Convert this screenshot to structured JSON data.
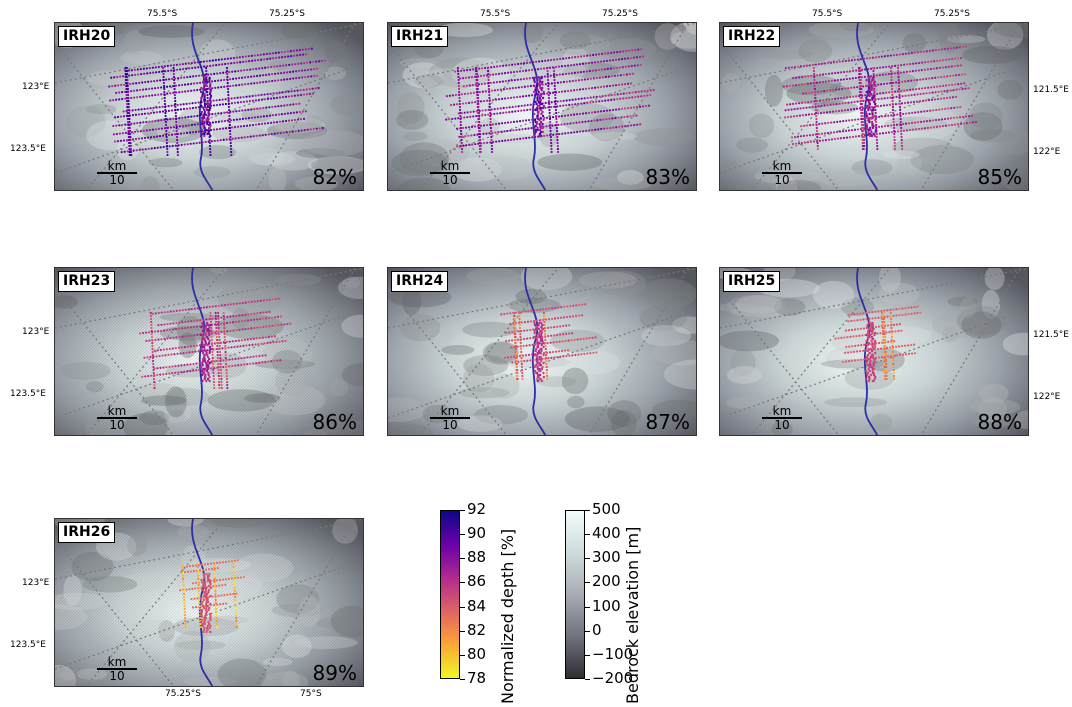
{
  "panels": [
    {
      "id": "IRH20",
      "pct": "82%",
      "coverage": 0.82,
      "depth_level": 0.05
    },
    {
      "id": "IRH21",
      "pct": "83%",
      "coverage": 0.78,
      "depth_level": 0.18
    },
    {
      "id": "IRH22",
      "pct": "85%",
      "coverage": 0.72,
      "depth_level": 0.32
    },
    {
      "id": "IRH23",
      "pct": "86%",
      "coverage": 0.55,
      "depth_level": 0.45
    },
    {
      "id": "IRH24",
      "pct": "87%",
      "coverage": 0.35,
      "depth_level": 0.62
    },
    {
      "id": "IRH25",
      "pct": "88%",
      "coverage": 0.32,
      "depth_level": 0.72
    },
    {
      "id": "IRH26",
      "pct": "89%",
      "coverage": 0.22,
      "depth_level": 0.85
    }
  ],
  "scale_bar": {
    "unit": "km",
    "length": "10"
  },
  "axis_labels": {
    "top_left": "75.5°S",
    "top_right": "75.25°S",
    "left_upper": "123°E",
    "left_lower": "123.5°E",
    "right_upper": "121.5°E",
    "right_lower": "122°E",
    "bottom_left": "75.25°S",
    "bottom_right": "75°S"
  },
  "colorbar_depth": {
    "label": "Normalized depth [%]",
    "ticks": [
      "92",
      "90",
      "88",
      "86",
      "84",
      "82",
      "80",
      "78"
    ],
    "min": 78,
    "max": 92,
    "colors": [
      "#0d0887",
      "#6a00a8",
      "#b12a90",
      "#e16462",
      "#fca636",
      "#f0f921"
    ]
  },
  "colorbar_bedrock": {
    "label": "Bedrock elevation [m]",
    "ticks": [
      "500",
      "400",
      "300",
      "200",
      "100",
      "0",
      "−100",
      "−200"
    ],
    "min": -250,
    "max": 500,
    "colors": [
      "#2e2e33",
      "#70727c",
      "#a7acb3",
      "#cfdcdc",
      "#f4fbfb"
    ]
  },
  "colors": {
    "stream": "#2b2fa6",
    "grid": "#777777"
  }
}
